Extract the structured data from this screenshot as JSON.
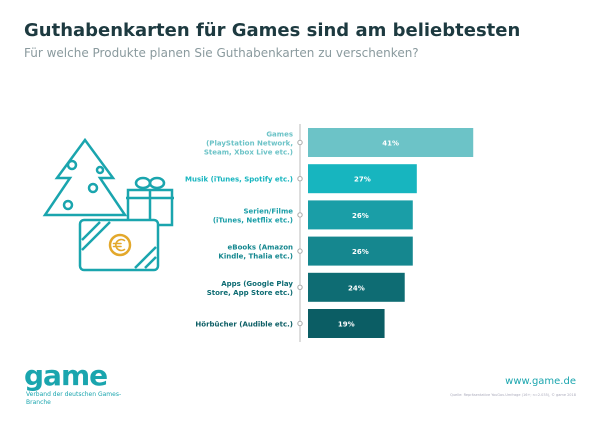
{
  "title": "Guthabenkarten für Games sind am beliebtesten",
  "subtitle": "Für welche Produkte planen Sie Guthabenkarten zu verschenken?",
  "chart_data": {
    "type": "bar",
    "orientation": "horizontal",
    "categories": [
      "Games (PlayStation Network, Steam, Xbox Live etc.)",
      "Musik (iTunes, Spotify etc.)",
      "Serien/Filme (iTunes, Netflix etc.)",
      "eBooks (Amazon Kindle, Thalia etc.)",
      "Apps (Google Play Store, App Store etc.)",
      "Hörbücher (Audible etc.)"
    ],
    "label_lines": [
      [
        "Games",
        "(PlayStation Network,",
        "Steam, Xbox Live etc.)"
      ],
      [
        "Musik (iTunes, Spotify etc.)"
      ],
      [
        "Serien/Filme",
        "(iTunes, Netflix etc.)"
      ],
      [
        "eBooks (Amazon",
        "Kindle, Thalia etc.)"
      ],
      [
        "Apps (Google Play",
        "Store, App Store etc.)"
      ],
      [
        "Hörbücher (Audible etc.)"
      ]
    ],
    "values": [
      41,
      27,
      26,
      26,
      24,
      19
    ],
    "value_suffix": "%",
    "colors": [
      "#6cc3c7",
      "#17b5bf",
      "#1a9ea7",
      "#15878f",
      "#0e6c73",
      "#0b5d64"
    ],
    "grid": false
  },
  "footer": {
    "logo": "game",
    "tagline": "Verband der deutschen Games-Branche",
    "url": "www.game.de",
    "source": "Quelle: Repräsentative YouGov-Umfrage (16+; n=2.035), © game 2018"
  }
}
